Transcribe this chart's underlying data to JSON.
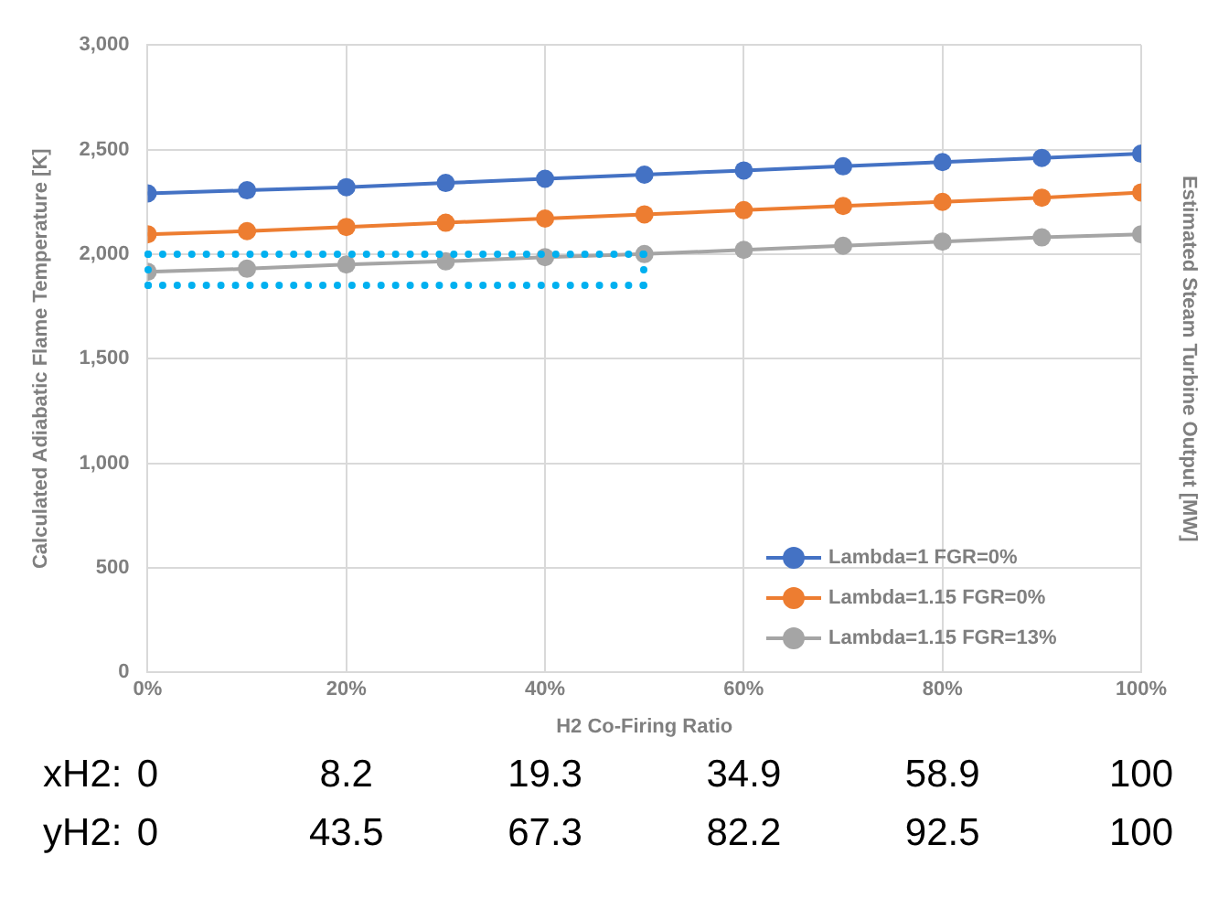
{
  "chart_data": {
    "type": "line",
    "xlabel": "H2 Co-Firing Ratio",
    "ylabel": "Calculated Adiabatic Flame Temperature [K]",
    "y2label": "Estimated Steam Turbine Output [MW]",
    "x": [
      0,
      10,
      20,
      30,
      40,
      50,
      60,
      70,
      80,
      90,
      100
    ],
    "series": [
      {
        "name": "Lambda=1 FGR=0%",
        "color": "#4472c4",
        "values": [
          2290,
          2305,
          2320,
          2340,
          2360,
          2380,
          2400,
          2420,
          2440,
          2460,
          2480
        ]
      },
      {
        "name": "Lambda=1.15 FGR=0%",
        "color": "#ed7d31",
        "values": [
          2095,
          2110,
          2130,
          2150,
          2170,
          2190,
          2210,
          2230,
          2250,
          2270,
          2295
        ]
      },
      {
        "name": "Lambda=1.15 FGR=13%",
        "color": "#a5a5a5",
        "values": [
          1915,
          1930,
          1950,
          1965,
          1985,
          2000,
          2020,
          2040,
          2060,
          2080,
          2095
        ]
      }
    ],
    "xlim": [
      0,
      100
    ],
    "xticks": [
      {
        "value": 0,
        "label": "0%"
      },
      {
        "value": 20,
        "label": "20%"
      },
      {
        "value": 40,
        "label": "40%"
      },
      {
        "value": 60,
        "label": "60%"
      },
      {
        "value": 80,
        "label": "80%"
      },
      {
        "value": 100,
        "label": "100%"
      }
    ],
    "ylim": [
      0,
      3000
    ],
    "yticks": [
      0,
      {
        "value": 500,
        "label": "500"
      },
      {
        "value": 1000,
        "label": "1,000"
      },
      {
        "value": 1500,
        "label": "1,500"
      },
      {
        "value": 2000,
        "label": "2,000"
      },
      {
        "value": 2500,
        "label": "2,500"
      },
      {
        "value": 3000,
        "label": "3,000"
      }
    ],
    "annotations": [
      "xH2:",
      "0",
      "8.2",
      "19.3",
      "34.9",
      "58.9",
      "100",
      "yH2:",
      "0",
      "43.5",
      "67.3",
      "82.2",
      "92.5",
      "100"
    ],
    "grid": true,
    "legend": "bottom right",
    "marker": "circle",
    "line_style": "solid"
  }
}
